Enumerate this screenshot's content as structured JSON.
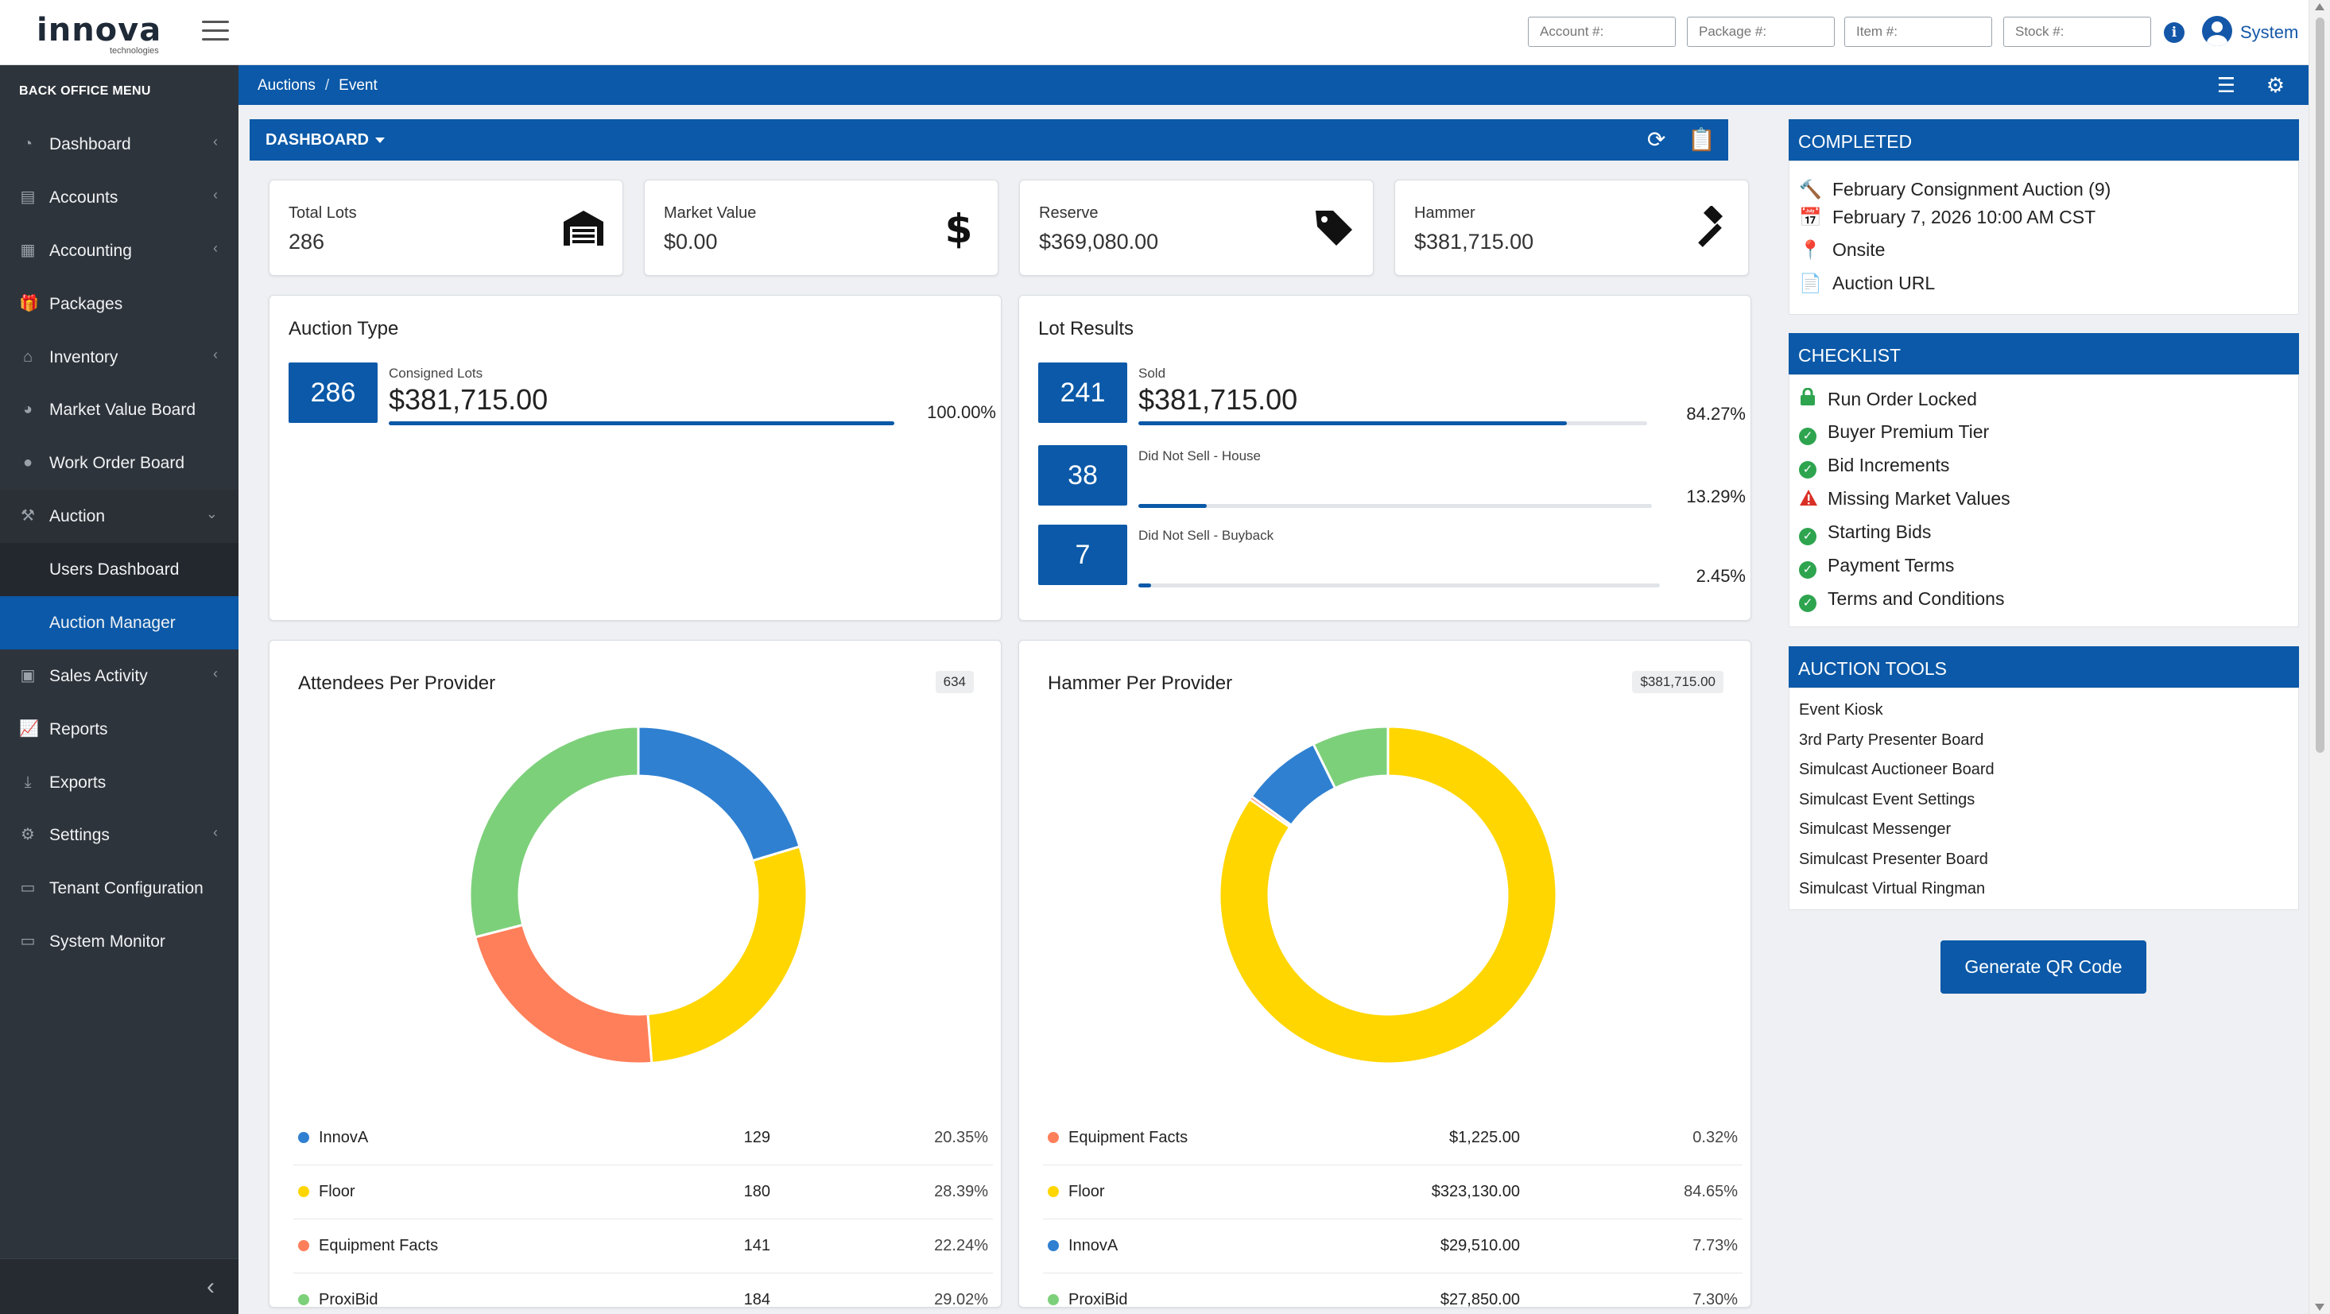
{
  "brand": {
    "name": "innova",
    "sub": "technologies"
  },
  "header": {
    "search_fields": [
      {
        "placeholder": "Account #:"
      },
      {
        "placeholder": "Package #:"
      },
      {
        "placeholder": "Item #:"
      },
      {
        "placeholder": "Stock #:"
      }
    ],
    "user": "System"
  },
  "sidebar": {
    "title": "BACK OFFICE MENU",
    "items": [
      {
        "label": "Dashboard",
        "icon": "dashboard-icon",
        "chevron": true
      },
      {
        "label": "Accounts",
        "icon": "id-card-icon",
        "chevron": true
      },
      {
        "label": "Accounting",
        "icon": "ledger-icon",
        "chevron": true
      },
      {
        "label": "Packages",
        "icon": "gift-icon",
        "chevron": false
      },
      {
        "label": "Inventory",
        "icon": "warehouse-icon",
        "chevron": true
      },
      {
        "label": "Market Value Board",
        "icon": "chart-icon",
        "chevron": false
      },
      {
        "label": "Work Order Board",
        "icon": "worker-icon",
        "chevron": false
      },
      {
        "label": "Auction",
        "icon": "gavel-icon",
        "chevron": true
      },
      {
        "label": "Users Dashboard",
        "icon": "",
        "chevron": false
      },
      {
        "label": "Auction Manager",
        "icon": "",
        "chevron": false
      },
      {
        "label": "Sales Activity",
        "icon": "clipboard-icon",
        "chevron": true
      },
      {
        "label": "Reports",
        "icon": "reports-icon",
        "chevron": false
      },
      {
        "label": "Exports",
        "icon": "download-icon",
        "chevron": false
      },
      {
        "label": "Settings",
        "icon": "gear-icon",
        "chevron": true
      },
      {
        "label": "Tenant Configuration",
        "icon": "monitor-icon",
        "chevron": false
      },
      {
        "label": "System Monitor",
        "icon": "monitor-icon",
        "chevron": false
      }
    ]
  },
  "breadcrumb": {
    "parent": "Auctions",
    "sep": "/",
    "current": "Event"
  },
  "dashboard": {
    "title": "DASHBOARD",
    "stats": [
      {
        "label": "Total Lots",
        "value": "286",
        "icon": "warehouse-icon"
      },
      {
        "label": "Market Value",
        "value": "$0.00",
        "icon": "dollar-icon"
      },
      {
        "label": "Reserve",
        "value": "$369,080.00",
        "icon": "tag-icon"
      },
      {
        "label": "Hammer",
        "value": "$381,715.00",
        "icon": "gavel-icon"
      }
    ],
    "auction_type": {
      "title": "Auction Type",
      "rows": [
        {
          "count": "286",
          "label": "Consigned Lots",
          "amount": "$381,715.00",
          "pct_text": "100.00%",
          "fraction": 1.0
        }
      ]
    },
    "lot_results": {
      "title": "Lot Results",
      "rows": [
        {
          "count": "241",
          "label": "Sold",
          "amount": "$381,715.00",
          "pct_text": "84.27%",
          "fraction": 0.8427
        },
        {
          "count": "38",
          "label": "Did Not Sell - House",
          "amount": "",
          "pct_text": "13.29%",
          "fraction": 0.1329
        },
        {
          "count": "7",
          "label": "Did Not Sell - Buyback",
          "amount": "",
          "pct_text": "2.45%",
          "fraction": 0.0245
        }
      ]
    },
    "attendees": {
      "title": "Attendees Per Provider",
      "total": "634",
      "rows": [
        {
          "name": "InnovA",
          "value": "129",
          "pct": "20.35%",
          "color": "#2f80d1",
          "share": 20.35
        },
        {
          "name": "Floor",
          "value": "180",
          "pct": "28.39%",
          "color": "#ffd600",
          "share": 28.39
        },
        {
          "name": "Equipment Facts",
          "value": "141",
          "pct": "22.24%",
          "color": "#ff7f5a",
          "share": 22.24
        },
        {
          "name": "ProxiBid",
          "value": "184",
          "pct": "29.02%",
          "color": "#7dd07a",
          "share": 29.02
        }
      ]
    },
    "hammer": {
      "title": "Hammer Per Provider",
      "total": "$381,715.00",
      "rows": [
        {
          "name": "Equipment Facts",
          "value": "$1,225.00",
          "pct": "0.32%",
          "color": "#ff7f5a",
          "share": 0.32
        },
        {
          "name": "Floor",
          "value": "$323,130.00",
          "pct": "84.65%",
          "color": "#ffd600",
          "share": 84.65
        },
        {
          "name": "InnovA",
          "value": "$29,510.00",
          "pct": "7.73%",
          "color": "#2f80d1",
          "share": 7.73
        },
        {
          "name": "ProxiBid",
          "value": "$27,850.00",
          "pct": "7.30%",
          "color": "#7dd07a",
          "share": 7.3
        }
      ]
    }
  },
  "completed": {
    "title": "COMPLETED",
    "event": "February Consignment Auction (9)",
    "date": "February 7, 2026 10:00 AM CST",
    "location": "Onsite",
    "url_label": "Auction URL"
  },
  "checklist": {
    "title": "CHECKLIST",
    "items": [
      {
        "label": "Run Order Locked",
        "status": "locked"
      },
      {
        "label": "Buyer Premium Tier",
        "status": "ok"
      },
      {
        "label": "Bid Increments",
        "status": "ok"
      },
      {
        "label": "Missing Market Values",
        "status": "warning"
      },
      {
        "label": "Starting Bids",
        "status": "ok"
      },
      {
        "label": "Payment Terms",
        "status": "ok"
      },
      {
        "label": "Terms and Conditions",
        "status": "ok"
      }
    ]
  },
  "tools": {
    "title": "AUCTION TOOLS",
    "items": [
      "Event Kiosk",
      "3rd Party Presenter Board",
      "Simulcast Auctioneer Board",
      "Simulcast Event Settings",
      "Simulcast Messenger",
      "Simulcast Presenter Board",
      "Simulcast Virtual Ringman"
    ],
    "qr_label": "Generate QR Code"
  },
  "colors": {
    "primary": "#0b59a8",
    "sidebar": "#2e343b",
    "ok": "#2ea44f",
    "warn": "#d93025"
  }
}
